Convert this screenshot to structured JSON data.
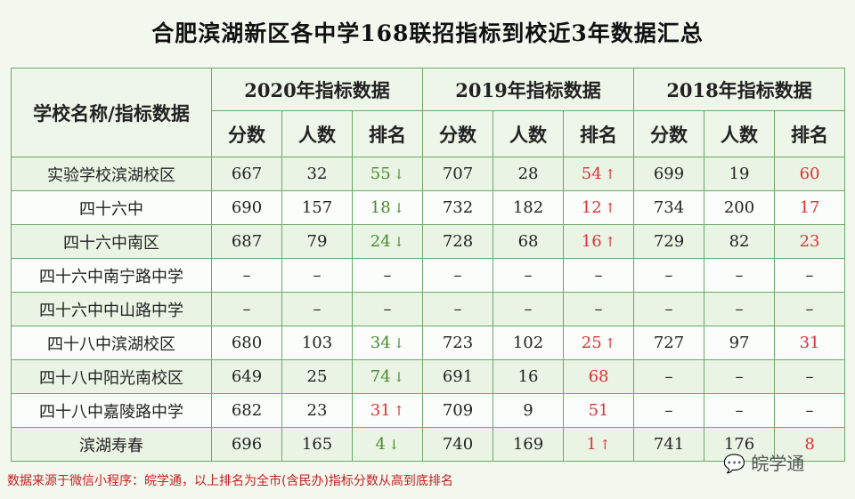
{
  "title": "合肥滨湖新区各中学168联招指标到校近3年数据汇总",
  "header": {
    "school_col": "学校名称/指标数据",
    "years": [
      "2020年指标数据",
      "2019年指标数据",
      "2018年指标数据"
    ],
    "sub": [
      "分数",
      "人数",
      "排名"
    ]
  },
  "colors": {
    "up": "#e0303a",
    "down": "#4a8a2e",
    "neutral": "#e0303a"
  },
  "rows": [
    {
      "name": "实验学校滨湖校区",
      "cells": [
        [
          "667",
          "32",
          {
            "v": "55",
            "dir": "down"
          }
        ],
        [
          "707",
          "28",
          {
            "v": "54",
            "dir": "up"
          }
        ],
        [
          "699",
          "19",
          {
            "v": "60",
            "dir": "none"
          }
        ]
      ]
    },
    {
      "name": "四十六中",
      "cells": [
        [
          "690",
          "157",
          {
            "v": "18",
            "dir": "down"
          }
        ],
        [
          "732",
          "182",
          {
            "v": "12",
            "dir": "up"
          }
        ],
        [
          "734",
          "200",
          {
            "v": "17",
            "dir": "none"
          }
        ]
      ]
    },
    {
      "name": "四十六中南区",
      "cells": [
        [
          "687",
          "79",
          {
            "v": "24",
            "dir": "down"
          }
        ],
        [
          "728",
          "68",
          {
            "v": "16",
            "dir": "up"
          }
        ],
        [
          "729",
          "82",
          {
            "v": "23",
            "dir": "none"
          }
        ]
      ]
    },
    {
      "name": "四十六中南宁路中学",
      "cells": [
        [
          "–",
          "–",
          {
            "v": "–",
            "dir": "dash"
          }
        ],
        [
          "–",
          "–",
          {
            "v": "–",
            "dir": "dash"
          }
        ],
        [
          "–",
          "–",
          {
            "v": "–",
            "dir": "dash"
          }
        ]
      ]
    },
    {
      "name": "四十六中中山路中学",
      "cells": [
        [
          "–",
          "–",
          {
            "v": "–",
            "dir": "dash"
          }
        ],
        [
          "–",
          "–",
          {
            "v": "–",
            "dir": "dash"
          }
        ],
        [
          "–",
          "–",
          {
            "v": "–",
            "dir": "dash"
          }
        ]
      ]
    },
    {
      "name": "四十八中滨湖校区",
      "cells": [
        [
          "680",
          "103",
          {
            "v": "34",
            "dir": "down"
          }
        ],
        [
          "723",
          "102",
          {
            "v": "25",
            "dir": "up"
          }
        ],
        [
          "727",
          "97",
          {
            "v": "31",
            "dir": "none"
          }
        ]
      ]
    },
    {
      "name": "四十八中阳光南校区",
      "cells": [
        [
          "649",
          "25",
          {
            "v": "74",
            "dir": "down"
          }
        ],
        [
          "691",
          "16",
          {
            "v": "68",
            "dir": "none"
          }
        ],
        [
          "–",
          "–",
          {
            "v": "–",
            "dir": "dash"
          }
        ]
      ]
    },
    {
      "name": "四十八中嘉陵路中学",
      "cells": [
        [
          "682",
          "23",
          {
            "v": "31",
            "dir": "up"
          }
        ],
        [
          "709",
          "9",
          {
            "v": "51",
            "dir": "none"
          }
        ],
        [
          "–",
          "–",
          {
            "v": "–",
            "dir": "dash"
          }
        ]
      ]
    },
    {
      "name": "滨湖寿春",
      "cells": [
        [
          "696",
          "165",
          {
            "v": "4",
            "dir": "down"
          }
        ],
        [
          "740",
          "169",
          {
            "v": "1",
            "dir": "up"
          }
        ],
        [
          "741",
          "176",
          {
            "v": "8",
            "dir": "none"
          }
        ]
      ]
    }
  ],
  "footnote": "数据来源于微信小程序：皖学通，以上排名为全市(含民办)指标分数从高到底排名",
  "logo": "皖学通"
}
